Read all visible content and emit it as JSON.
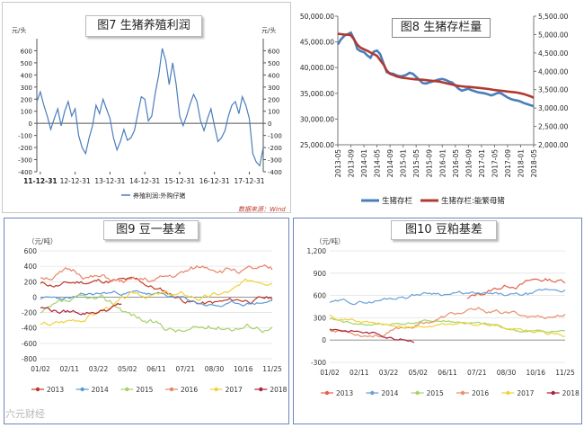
{
  "chart_data": [
    {
      "id": "fig7",
      "type": "line",
      "title": "图7 生猪养殖利润",
      "unit_left": "元/头",
      "unit_right": "元/头",
      "x_tick_labels": [
        "11-12-31",
        "12-12-31",
        "13-12-31",
        "14-12-31",
        "15-12-31",
        "16-12-31",
        "17-12-31"
      ],
      "ylim": [
        -400,
        700
      ],
      "y_ticks": [
        -400,
        -300,
        -200,
        -100,
        0,
        100,
        200,
        300,
        400,
        500,
        600
      ],
      "legend": "养殖利润:外购仔猪",
      "source": "数据来源：Wind",
      "series": [
        {
          "name": "养殖利润:外购仔猪",
          "color": "#4a7ebb",
          "x": [
            2011.9,
            2012.0,
            2012.1,
            2012.2,
            2012.3,
            2012.4,
            2012.5,
            2012.6,
            2012.7,
            2012.8,
            2012.9,
            2013.0,
            2013.1,
            2013.2,
            2013.3,
            2013.4,
            2013.5,
            2013.6,
            2013.7,
            2013.8,
            2013.9,
            2014.0,
            2014.1,
            2014.2,
            2014.3,
            2014.4,
            2014.5,
            2014.6,
            2014.7,
            2014.8,
            2014.9,
            2015.0,
            2015.1,
            2015.2,
            2015.3,
            2015.4,
            2015.5,
            2015.6,
            2015.7,
            2015.8,
            2015.9,
            2016.0,
            2016.1,
            2016.2,
            2016.3,
            2016.4,
            2016.5,
            2016.6,
            2016.7,
            2016.8,
            2016.9,
            2017.0,
            2017.1,
            2017.2,
            2017.3,
            2017.4,
            2017.5,
            2017.6,
            2017.7,
            2017.8,
            2017.9,
            2018.0,
            2018.1,
            2018.2,
            2018.3,
            2018.4
          ],
          "y": [
            180,
            260,
            150,
            60,
            -50,
            40,
            120,
            -20,
            100,
            180,
            60,
            120,
            -100,
            -200,
            -250,
            -120,
            -20,
            150,
            80,
            200,
            120,
            40,
            -120,
            -220,
            -150,
            -50,
            -140,
            -120,
            -60,
            80,
            220,
            200,
            20,
            60,
            250,
            400,
            620,
            520,
            320,
            500,
            320,
            60,
            -20,
            60,
            160,
            240,
            180,
            20,
            -60,
            40,
            120,
            -20,
            -150,
            -120,
            -60,
            60,
            150,
            180,
            80,
            220,
            150,
            40,
            -250,
            -320,
            -350,
            -200
          ]
        }
      ]
    },
    {
      "id": "fig8",
      "type": "line",
      "title": "图8 生猪存栏量",
      "y_left_ticks": [
        "25,000.00",
        "30,000.00",
        "35,000.00",
        "40,000.00",
        "45,000.00",
        "50,000.00"
      ],
      "y_right_ticks": [
        "2,000.00",
        "2,500.00",
        "3,000.00",
        "3,500.00",
        "4,000.00",
        "4,500.00",
        "5,000.00",
        "5,500.00"
      ],
      "ylim_left": [
        25000,
        50000
      ],
      "ylim_right": [
        2000,
        5500
      ],
      "x_tick_labels": [
        "2013-05",
        "2013-09",
        "2014-01",
        "2014-05",
        "2014-09",
        "2015-01",
        "2015-05",
        "2015-09",
        "2016-01",
        "2016-05",
        "2016-09",
        "2017-01",
        "2017-05",
        "2017-09",
        "2018-01",
        "2018-05"
      ],
      "series": [
        {
          "name": "生猪存栏",
          "axis": "left",
          "color": "#4a7ebb",
          "x": [
            0,
            1,
            2,
            3,
            4,
            5,
            6,
            7,
            8,
            9,
            10,
            11,
            12,
            13,
            14,
            15,
            16,
            17,
            18,
            19,
            20,
            21,
            22,
            23,
            24,
            25,
            26,
            27,
            28,
            29,
            30,
            31,
            32,
            33,
            34,
            35,
            36,
            37,
            38,
            39,
            40,
            41,
            42,
            43,
            44,
            45,
            46,
            47,
            48,
            49,
            50,
            51,
            52,
            53,
            54,
            55,
            56,
            57,
            58,
            59,
            60
          ],
          "y": [
            44500,
            45500,
            46200,
            46500,
            46800,
            45500,
            43600,
            43200,
            43000,
            42400,
            41900,
            43100,
            43300,
            42600,
            40800,
            39100,
            38900,
            38800,
            38500,
            38300,
            38400,
            38600,
            39000,
            38800,
            38200,
            37600,
            37000,
            36900,
            37100,
            37300,
            37500,
            37700,
            37800,
            37600,
            37300,
            37100,
            36500,
            35900,
            35500,
            35700,
            35900,
            35600,
            35400,
            35200,
            35100,
            35000,
            34800,
            34600,
            34800,
            35100,
            35000,
            34600,
            34200,
            33900,
            33700,
            33600,
            33400,
            33100,
            32900,
            32700,
            32500
          ]
        },
        {
          "name": "生猪存栏:能繁母猪",
          "axis": "right",
          "color": "#b03a30",
          "x": [
            0,
            1,
            2,
            3,
            4,
            5,
            6,
            7,
            8,
            9,
            10,
            11,
            12,
            13,
            14,
            15,
            16,
            17,
            18,
            19,
            20,
            21,
            22,
            23,
            24,
            25,
            26,
            27,
            28,
            29,
            30,
            31,
            32,
            33,
            34,
            35,
            36,
            37,
            38,
            39,
            40,
            41,
            42,
            43,
            44,
            45,
            46,
            47,
            48,
            49,
            50,
            51,
            52,
            53,
            54,
            55,
            56,
            57,
            58,
            59,
            60
          ],
          "y": [
            5020,
            5010,
            5000,
            4995,
            4980,
            4860,
            4720,
            4640,
            4600,
            4560,
            4510,
            4470,
            4420,
            4300,
            4180,
            4020,
            3930,
            3900,
            3860,
            3840,
            3820,
            3810,
            3800,
            3790,
            3780,
            3775,
            3770,
            3760,
            3750,
            3740,
            3730,
            3720,
            3700,
            3680,
            3660,
            3640,
            3620,
            3600,
            3590,
            3580,
            3575,
            3570,
            3560,
            3550,
            3540,
            3530,
            3520,
            3505,
            3490,
            3480,
            3470,
            3460,
            3450,
            3440,
            3430,
            3420,
            3400,
            3380,
            3350,
            3320,
            3280
          ]
        }
      ]
    },
    {
      "id": "fig9",
      "type": "line",
      "title": "图9 豆一基差",
      "unit": "（元/吨）",
      "ylim": [
        -800,
        600
      ],
      "y_ticks": [
        -800,
        -600,
        -400,
        -200,
        0,
        200,
        400,
        600
      ],
      "x_tick_labels": [
        "01/02",
        "02/11",
        "03/22",
        "05/02",
        "06/11",
        "07/21",
        "08/30",
        "10/16",
        "11/25"
      ],
      "series": [
        {
          "name": "2013",
          "color": "#c0392b",
          "seed": 11,
          "start": 0,
          "end": 1.0,
          "base": 250,
          "trend": -350,
          "amp": 160
        },
        {
          "name": "2014",
          "color": "#5a9bd5",
          "seed": 23,
          "start": 0,
          "end": 1.0,
          "base": 40,
          "trend": -120,
          "amp": 120
        },
        {
          "name": "2015",
          "color": "#a6d26a",
          "seed": 37,
          "start": 0,
          "end": 1.0,
          "base": -150,
          "trend": -300,
          "amp": 200
        },
        {
          "name": "2016",
          "color": "#e8856a",
          "seed": 51,
          "start": 0,
          "end": 1.0,
          "base": 200,
          "trend": 100,
          "amp": 200
        },
        {
          "name": "2017",
          "color": "#f0d23a",
          "seed": 67,
          "start": 0,
          "end": 1.0,
          "base": -300,
          "trend": 550,
          "amp": 180
        },
        {
          "name": "2018",
          "color": "#b0223a",
          "seed": 79,
          "start": 0,
          "end": 0.35,
          "base": -100,
          "trend": -100,
          "amp": 150
        }
      ]
    },
    {
      "id": "fig10",
      "type": "line",
      "title": "图10 豆粕基差",
      "unit": "（元/吨）",
      "ylim": [
        -300,
        1200
      ],
      "y_ticks": [
        -300,
        0,
        300,
        600,
        900,
        1200
      ],
      "x_tick_labels": [
        "01/02",
        "02/11",
        "03/22",
        "05/02",
        "06/11",
        "07/21",
        "08/30",
        "10/16",
        "11/25"
      ],
      "series": [
        {
          "name": "2013",
          "color": "#e2624d",
          "seed": 13,
          "start": 0.58,
          "end": 1.0,
          "base": 300,
          "trend": 500,
          "amp": 160
        },
        {
          "name": "2014",
          "color": "#6aa0d8",
          "seed": 29,
          "start": 0,
          "end": 1.0,
          "base": 550,
          "trend": 100,
          "amp": 120
        },
        {
          "name": "2015",
          "color": "#a6d26a",
          "seed": 41,
          "start": 0,
          "end": 1.0,
          "base": 280,
          "trend": -150,
          "amp": 90
        },
        {
          "name": "2016",
          "color": "#e8906a",
          "seed": 53,
          "start": 0,
          "end": 1.0,
          "base": 120,
          "trend": 300,
          "amp": 140
        },
        {
          "name": "2017",
          "color": "#f0d23a",
          "seed": 71,
          "start": 0,
          "end": 1.0,
          "base": 300,
          "trend": -200,
          "amp": 110
        },
        {
          "name": "2018",
          "color": "#a8223a",
          "seed": 83,
          "start": 0,
          "end": 0.36,
          "base": 100,
          "trend": -60,
          "amp": 100
        }
      ]
    }
  ],
  "watermark": "六元财经"
}
